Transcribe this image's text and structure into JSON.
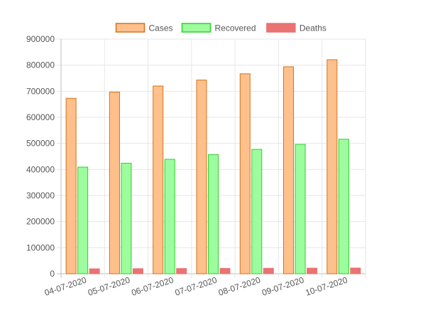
{
  "chart_data": {
    "type": "bar",
    "categories": [
      "04-07-2020",
      "05-07-2020",
      "06-07-2020",
      "07-07-2020",
      "08-07-2020",
      "09-07-2020",
      "10-07-2020"
    ],
    "series": [
      {
        "name": "Cases",
        "values": [
          673000,
          697000,
          720000,
          743000,
          767000,
          794000,
          821000
        ],
        "fill": "#ffc08c",
        "stroke": "#d2731e"
      },
      {
        "name": "Recovered",
        "values": [
          409000,
          424000,
          439000,
          457000,
          477000,
          496000,
          516000
        ],
        "fill": "#9dfc9d",
        "stroke": "#2fd02f"
      },
      {
        "name": "Deaths",
        "values": [
          19000,
          19500,
          20000,
          20500,
          21000,
          21500,
          22000
        ],
        "fill": "#ea7272",
        "stroke": "#ea7272"
      }
    ],
    "yticks": [
      "0",
      "100000",
      "200000",
      "300000",
      "400000",
      "500000",
      "600000",
      "700000",
      "800000",
      "900000"
    ],
    "ylim": [
      0,
      900000
    ],
    "grid": true,
    "legend_position": "top"
  }
}
